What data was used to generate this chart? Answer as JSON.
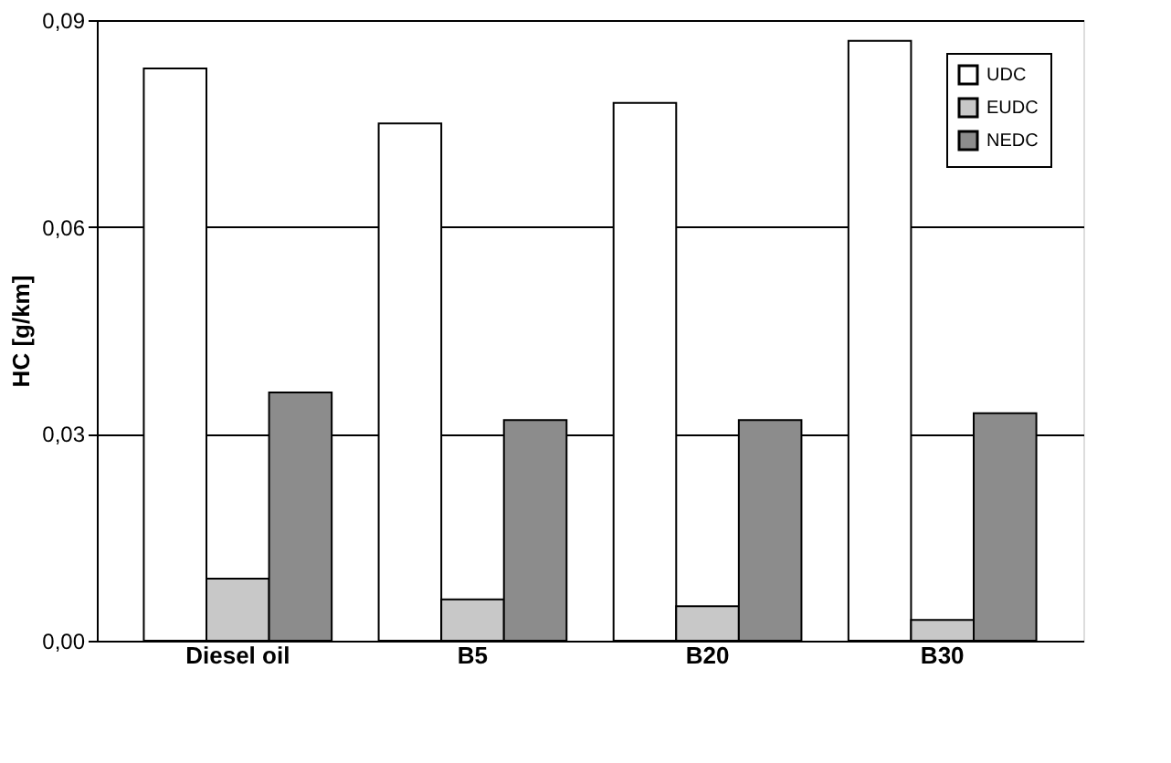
{
  "chart_data": {
    "type": "bar",
    "ylabel": "HC [g/km]",
    "categories": [
      "Diesel oil",
      "B5",
      "B20",
      "B30"
    ],
    "series": [
      {
        "name": "UDC",
        "color": "#ffffff",
        "values": [
          0.083,
          0.075,
          0.078,
          0.087
        ]
      },
      {
        "name": "EUDC",
        "color": "#c8c8c8",
        "values": [
          0.009,
          0.006,
          0.005,
          0.003
        ]
      },
      {
        "name": "NEDC",
        "color": "#8c8c8c",
        "values": [
          0.036,
          0.032,
          0.032,
          0.033
        ]
      }
    ],
    "ylim": [
      0,
      0.09
    ],
    "yticks": [
      {
        "value": 0,
        "label": "0,00"
      },
      {
        "value": 0.03,
        "label": "0,03"
      },
      {
        "value": 0.06,
        "label": "0,06"
      },
      {
        "value": 0.09,
        "label": "0,09"
      }
    ],
    "grid": "y",
    "legend": "top right"
  }
}
